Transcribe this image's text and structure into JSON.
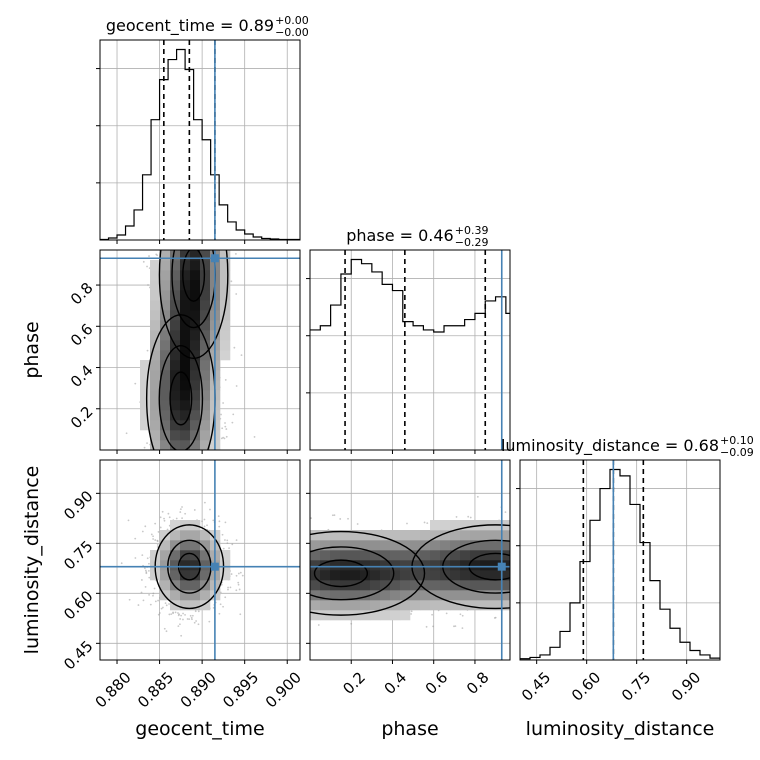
{
  "chart_data": {
    "type": "corner",
    "parameters": [
      {
        "name": "geocent_time",
        "label": "geocent_time",
        "range": [
          0.878,
          0.9015
        ],
        "ticks": [
          0.88,
          0.885,
          0.89,
          0.895,
          0.9
        ],
        "tick_labels": [
          "0.880",
          "0.885",
          "0.890",
          "0.895",
          "0.900"
        ],
        "truth": 0.8915,
        "quantiles": [
          0.8855,
          0.8885,
          0.8915
        ],
        "title": {
          "base": "geocent_time = 0.89",
          "sup": "+0.00",
          "sub": "−0.00"
        },
        "histogram": {
          "bins": [
            0.878,
            0.879,
            0.88,
            0.881,
            0.882,
            0.883,
            0.884,
            0.885,
            0.886,
            0.887,
            0.888,
            0.889,
            0.89,
            0.891,
            0.892,
            0.893,
            0.894,
            0.895,
            0.896,
            0.897,
            0.898,
            0.899,
            0.9,
            0.9015
          ],
          "counts": [
            1,
            4,
            10,
            28,
            60,
            130,
            240,
            320,
            360,
            380,
            340,
            240,
            200,
            130,
            70,
            36,
            20,
            12,
            6,
            3,
            2,
            1,
            1
          ]
        }
      },
      {
        "name": "phase",
        "label": "phase",
        "range": [
          0.0,
          0.97
        ],
        "ticks": [
          0.2,
          0.4,
          0.6,
          0.8
        ],
        "tick_labels": [
          "0.2",
          "0.4",
          "0.6",
          "0.8"
        ],
        "truth": 0.93,
        "quantiles": [
          0.17,
          0.46,
          0.85
        ],
        "title": {
          "base": "phase = 0.46",
          "sup": "+0.39",
          "sub": "−0.29"
        },
        "histogram": {
          "bins": [
            0.0,
            0.05,
            0.1,
            0.15,
            0.2,
            0.25,
            0.3,
            0.35,
            0.4,
            0.45,
            0.5,
            0.55,
            0.6,
            0.65,
            0.7,
            0.75,
            0.8,
            0.85,
            0.9,
            0.95,
            0.97
          ],
          "counts": [
            0.58,
            0.6,
            0.7,
            0.85,
            0.92,
            0.9,
            0.86,
            0.8,
            0.77,
            0.62,
            0.6,
            0.58,
            0.57,
            0.6,
            0.6,
            0.63,
            0.66,
            0.72,
            0.74,
            0.66
          ]
        }
      },
      {
        "name": "luminosity_distance",
        "label": "luminosity_distance",
        "range": [
          0.4,
          1.0
        ],
        "ticks": [
          0.45,
          0.6,
          0.75,
          0.9
        ],
        "tick_labels": [
          "0.45",
          "0.60",
          "0.75",
          "0.90"
        ],
        "truth": 0.68,
        "quantiles": [
          0.59,
          0.68,
          0.77
        ],
        "title": {
          "base": "luminosity_distance = 0.68",
          "sup": "+0.10",
          "sub": "−0.09"
        },
        "histogram": {
          "bins": [
            0.4,
            0.43,
            0.46,
            0.49,
            0.52,
            0.55,
            0.58,
            0.61,
            0.64,
            0.67,
            0.7,
            0.73,
            0.76,
            0.79,
            0.82,
            0.85,
            0.88,
            0.91,
            0.94,
            0.97,
            1.0
          ],
          "counts": [
            2,
            4,
            8,
            20,
            45,
            90,
            155,
            220,
            270,
            300,
            290,
            245,
            185,
            125,
            80,
            50,
            28,
            15,
            8,
            3
          ]
        }
      }
    ],
    "pairs": [
      {
        "x": "geocent_time",
        "y": "phase",
        "peaks": [
          [
            0.8875,
            0.25
          ],
          [
            0.889,
            0.85
          ]
        ]
      },
      {
        "x": "geocent_time",
        "y": "luminosity_distance",
        "peaks": [
          [
            0.8885,
            0.68
          ]
        ]
      },
      {
        "x": "phase",
        "y": "luminosity_distance",
        "peaks": [
          [
            0.15,
            0.66
          ],
          [
            0.9,
            0.68
          ]
        ]
      }
    ],
    "colors": {
      "truth": "#4682b4",
      "hist": "#000000",
      "grid": "#b0b0b0",
      "scatter": "#9a9a9a"
    },
    "grid": true
  }
}
